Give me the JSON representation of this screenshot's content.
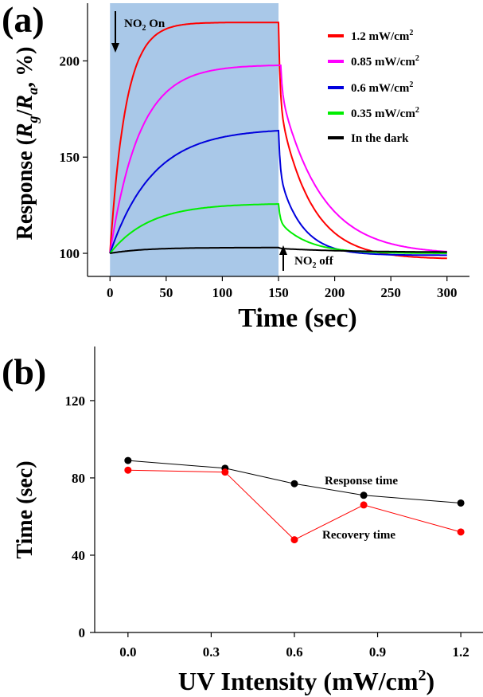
{
  "chart_data": [
    {
      "type": "line",
      "panel_label": "(a)",
      "xlabel": "Time (sec)",
      "ylabel_prefix": "Response (",
      "ylabel_r1": "R",
      "ylabel_sub1": "g",
      "ylabel_slash": "/",
      "ylabel_r2": "R",
      "ylabel_sub2": "a",
      "ylabel_suffix": ", %)",
      "xlim": [
        -20,
        320
      ],
      "ylim": [
        88,
        230
      ],
      "xticks": [
        0,
        50,
        100,
        150,
        200,
        250,
        300
      ],
      "yticks": [
        100,
        150,
        200
      ],
      "shaded_region": [
        0,
        150
      ],
      "shade_color": "#a9c8e8",
      "annotations": {
        "on_main": "NO",
        "on_sub": "2",
        "on_rest": " On",
        "off_main": "NO",
        "off_sub": "2",
        "off_rest": " off"
      },
      "legend_position": "top-right",
      "series": [
        {
          "name": "1.2 mW/cm",
          "sup": "2",
          "color": "#ff0000",
          "plateau": 220,
          "tau_on": 14,
          "end": 97,
          "tau_off": 28
        },
        {
          "name": "0.85 mW/cm",
          "sup": "2",
          "color": "#ff00ff",
          "plateau": 198,
          "tau_on": 26,
          "end": 99.5,
          "tau_off": 36
        },
        {
          "name": "0.6 mW/cm",
          "sup": "2",
          "color": "#0000dd",
          "plateau": 165,
          "tau_on": 38,
          "end": 99,
          "tau_off": 20
        },
        {
          "name": "0.35 mW/cm",
          "sup": "2",
          "color": "#00ee00",
          "plateau": 126,
          "tau_on": 35,
          "end": 100,
          "tau_off": 25
        },
        {
          "name": "In the dark",
          "sup": "",
          "color": "#000000",
          "plateau": 103,
          "tau_on": 30,
          "end": 100.5,
          "tau_off": 60
        }
      ]
    },
    {
      "type": "line",
      "panel_label": "(b)",
      "xlabel": "UV Intensity (mW/cm",
      "xlabel_sup": "2",
      "xlabel_end": ")",
      "ylabel": "Time (sec)",
      "xlim": [
        -0.12,
        1.28
      ],
      "ylim": [
        0,
        148
      ],
      "xticks": [
        "0.0",
        "0.3",
        "0.6",
        "0.9",
        "1.2"
      ],
      "yticks": [
        "0",
        "40",
        "80",
        "120"
      ],
      "series": [
        {
          "name": "Response time",
          "color": "#000000",
          "x": [
            0,
            0.35,
            0.6,
            0.85,
            1.2
          ],
          "y": [
            89,
            85,
            77,
            71,
            67
          ]
        },
        {
          "name": "Recovery time",
          "color": "#ff0000",
          "x": [
            0,
            0.35,
            0.6,
            0.85,
            1.2
          ],
          "y": [
            84,
            83,
            48,
            66,
            52
          ]
        }
      ]
    }
  ]
}
